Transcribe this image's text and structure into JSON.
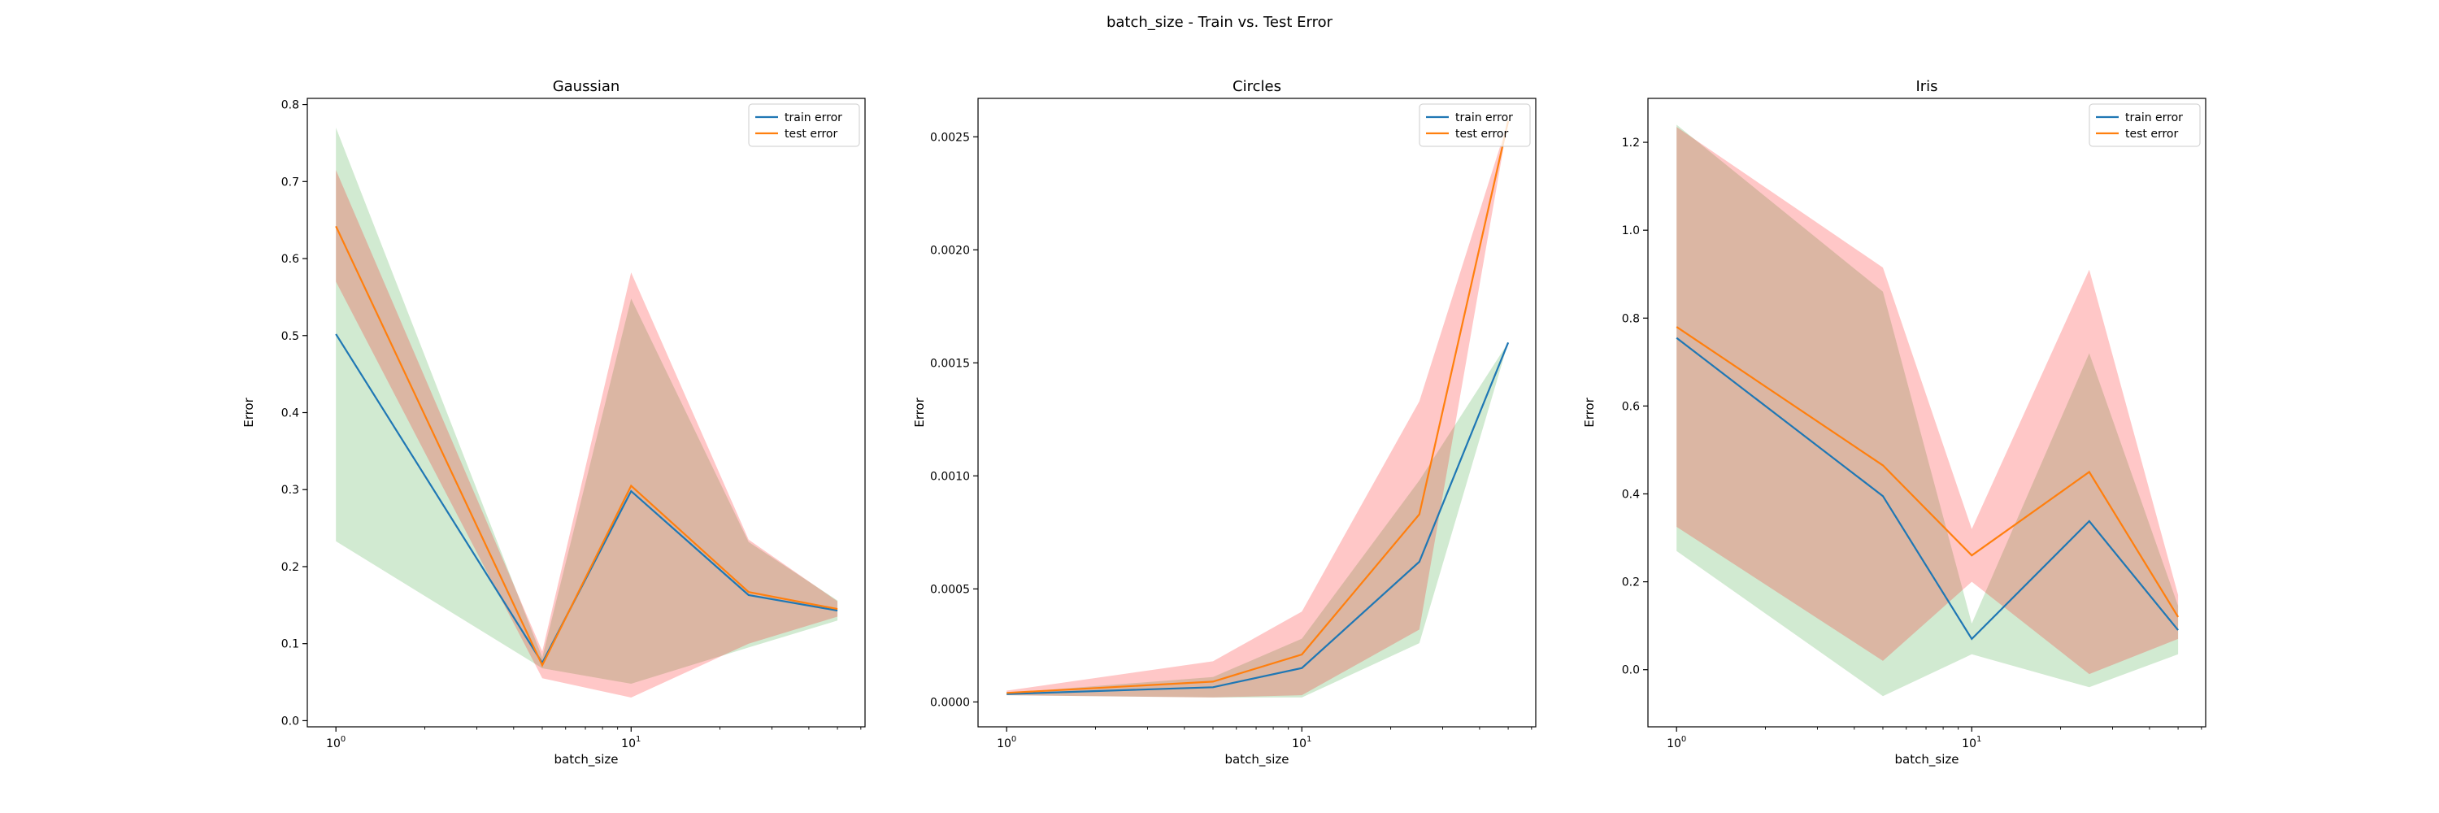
{
  "figure": {
    "suptitle": "batch_size - Train vs. Test Error"
  },
  "chart_data": [
    {
      "type": "line",
      "title": "Gaussian",
      "xlabel": "batch_size",
      "ylabel": "Error",
      "xscale": "log",
      "x": [
        1,
        5,
        10,
        25,
        50
      ],
      "xlim": [
        0.8,
        62
      ],
      "ylim": [
        -0.008,
        0.808
      ],
      "xticks": [
        {
          "value": 1,
          "label": "10^0"
        },
        {
          "value": 10,
          "label": "10^1"
        }
      ],
      "yticks": [
        0.0,
        0.1,
        0.2,
        0.3,
        0.4,
        0.5,
        0.6,
        0.7,
        0.8
      ],
      "ytick_labels": [
        "0.0",
        "0.1",
        "0.2",
        "0.3",
        "0.4",
        "0.5",
        "0.6",
        "0.7",
        "0.8"
      ],
      "legend": "upper-right",
      "series": [
        {
          "name": "train error",
          "color": "#1f77b4",
          "values": [
            0.502,
            0.075,
            0.298,
            0.163,
            0.143
          ],
          "band_lower": [
            0.233,
            0.068,
            0.048,
            0.095,
            0.13
          ],
          "band_upper": [
            0.77,
            0.082,
            0.548,
            0.232,
            0.156
          ],
          "band_color": "#2ca02c"
        },
        {
          "name": "test error",
          "color": "#ff7f0e",
          "values": [
            0.642,
            0.072,
            0.305,
            0.167,
            0.145
          ],
          "band_lower": [
            0.57,
            0.055,
            0.03,
            0.1,
            0.135
          ],
          "band_upper": [
            0.715,
            0.09,
            0.582,
            0.235,
            0.155
          ],
          "band_color": "#ff0000"
        }
      ]
    },
    {
      "type": "line",
      "title": "Circles",
      "xlabel": "batch_size",
      "ylabel": "Error",
      "xscale": "log",
      "x": [
        1,
        5,
        10,
        25,
        50
      ],
      "xlim": [
        0.8,
        62
      ],
      "ylim": [
        -0.00011,
        0.00267
      ],
      "xticks": [
        {
          "value": 1,
          "label": "10^0"
        },
        {
          "value": 10,
          "label": "10^1"
        }
      ],
      "yticks": [
        0.0,
        0.0005,
        0.001,
        0.0015,
        0.002,
        0.0025
      ],
      "ytick_labels": [
        "0.0000",
        "0.0005",
        "0.0010",
        "0.0015",
        "0.0020",
        "0.0025"
      ],
      "legend": "upper-right",
      "series": [
        {
          "name": "train error",
          "color": "#1f77b4",
          "values": [
            3.5e-05,
            6.5e-05,
            0.00015,
            0.00062,
            0.00159
          ],
          "band_lower": [
            3e-05,
            2e-05,
            2e-05,
            0.00026,
            0.00159
          ],
          "band_upper": [
            4e-05,
            0.00011,
            0.00028,
            0.00098,
            0.00159
          ],
          "band_color": "#2ca02c"
        },
        {
          "name": "test error",
          "color": "#ff7f0e",
          "values": [
            4e-05,
            9e-05,
            0.00021,
            0.00083,
            0.00257
          ],
          "band_lower": [
            3e-05,
            2e-05,
            3e-05,
            0.00032,
            0.00257
          ],
          "band_upper": [
            5e-05,
            0.00018,
            0.0004,
            0.00133,
            0.00257
          ],
          "band_color": "#ff0000"
        }
      ]
    },
    {
      "type": "line",
      "title": "Iris",
      "xlabel": "batch_size",
      "ylabel": "Error",
      "xscale": "log",
      "x": [
        1,
        5,
        10,
        25,
        50
      ],
      "xlim": [
        0.8,
        62
      ],
      "ylim": [
        -0.13,
        1.3
      ],
      "xticks": [
        {
          "value": 1,
          "label": "10^0"
        },
        {
          "value": 10,
          "label": "10^1"
        }
      ],
      "yticks": [
        0.0,
        0.2,
        0.4,
        0.6,
        0.8,
        1.0,
        1.2
      ],
      "ytick_labels": [
        "0.0",
        "0.2",
        "0.4",
        "0.6",
        "0.8",
        "1.0",
        "1.2"
      ],
      "legend": "upper-right",
      "series": [
        {
          "name": "train error",
          "color": "#1f77b4",
          "values": [
            0.755,
            0.395,
            0.07,
            0.338,
            0.09
          ],
          "band_lower": [
            0.27,
            -0.06,
            0.035,
            -0.04,
            0.035
          ],
          "band_upper": [
            1.24,
            0.86,
            0.105,
            0.72,
            0.145
          ],
          "band_color": "#2ca02c"
        },
        {
          "name": "test error",
          "color": "#ff7f0e",
          "values": [
            0.78,
            0.465,
            0.26,
            0.45,
            0.12
          ],
          "band_lower": [
            0.325,
            0.02,
            0.2,
            -0.01,
            0.07
          ],
          "band_upper": [
            1.235,
            0.915,
            0.32,
            0.91,
            0.17
          ],
          "band_color": "#ff0000"
        }
      ]
    }
  ]
}
